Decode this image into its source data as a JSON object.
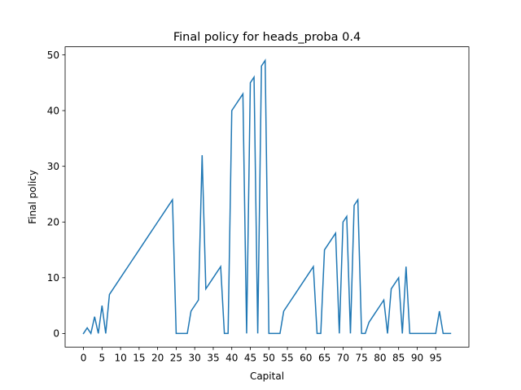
{
  "chart_data": {
    "type": "line",
    "title": "Final policy for heads_proba 0.4",
    "xlabel": "Capital",
    "ylabel": "Final policy",
    "xlim": [
      -4.95,
      103.95
    ],
    "ylim": [
      -2.45,
      51.45
    ],
    "x_ticks": [
      0,
      5,
      10,
      15,
      20,
      25,
      30,
      35,
      40,
      45,
      50,
      55,
      60,
      65,
      70,
      75,
      80,
      85,
      90,
      95
    ],
    "x_tick_labels": [
      "0",
      "5",
      "10",
      "15",
      "20",
      "25",
      "30",
      "35",
      "40",
      "45",
      "50",
      "55",
      "60",
      "65",
      "70",
      "75",
      "80",
      "85",
      "90",
      "95"
    ],
    "y_ticks": [
      0,
      10,
      20,
      30,
      40,
      50
    ],
    "y_tick_labels": [
      "0",
      "10",
      "20",
      "30",
      "40",
      "50"
    ],
    "grid": false,
    "color": "#1f77b4",
    "series": [
      {
        "x": [
          0,
          1,
          2,
          3,
          4,
          5,
          6,
          7,
          8,
          9,
          10,
          11,
          12,
          13,
          14,
          15,
          16,
          17,
          18,
          19,
          20,
          21,
          22,
          23,
          24,
          25,
          26,
          27,
          28,
          29,
          30,
          31,
          32,
          33,
          34,
          35,
          36,
          37,
          38,
          39,
          40,
          41,
          42,
          43,
          44,
          45,
          46,
          47,
          48,
          49,
          50,
          51,
          52,
          53,
          54,
          55,
          56,
          57,
          58,
          59,
          60,
          61,
          62,
          63,
          64,
          65,
          66,
          67,
          68,
          69,
          70,
          71,
          72,
          73,
          74,
          75,
          76,
          77,
          78,
          79,
          80,
          81,
          82,
          83,
          84,
          85,
          86,
          87,
          88,
          89,
          90,
          91,
          92,
          93,
          94,
          95,
          96,
          97,
          98,
          99
        ],
        "values": [
          0,
          1,
          0,
          3,
          0,
          5,
          0,
          7,
          8,
          9,
          10,
          11,
          12,
          13,
          14,
          15,
          16,
          17,
          18,
          19,
          20,
          21,
          22,
          23,
          24,
          0,
          0,
          0,
          0,
          4,
          5,
          6,
          32,
          8,
          9,
          10,
          11,
          12,
          0,
          0,
          40,
          41,
          42,
          43,
          0,
          45,
          46,
          0,
          48,
          49,
          0,
          0,
          0,
          0,
          4,
          5,
          6,
          7,
          8,
          9,
          10,
          11,
          12,
          0,
          0,
          15,
          16,
          17,
          18,
          0,
          20,
          21,
          0,
          23,
          24,
          0,
          0,
          2,
          3,
          4,
          5,
          6,
          0,
          8,
          9,
          10,
          0,
          12,
          0,
          0,
          0,
          0,
          0,
          0,
          0,
          0,
          4,
          0,
          0,
          0
        ]
      }
    ]
  }
}
